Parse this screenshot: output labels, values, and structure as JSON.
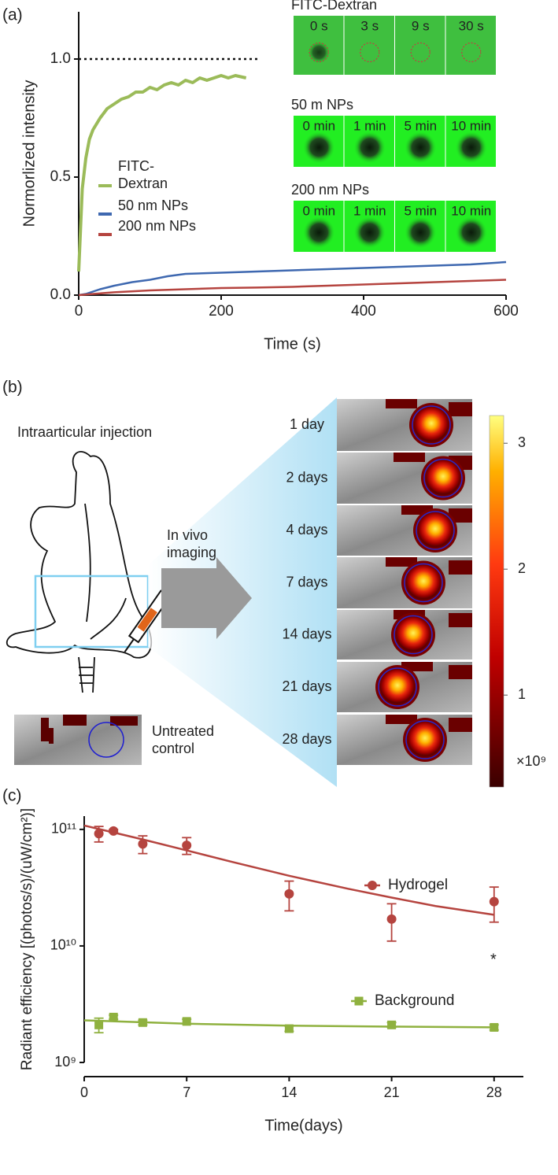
{
  "panel_labels": [
    "(a)",
    "(b)",
    "(c)"
  ],
  "chart_data": [
    {
      "type": "line",
      "xlabel": "Time (s)",
      "ylabel": "Normorlized intensity",
      "xlim": [
        0,
        600
      ],
      "xticks": [
        0,
        200,
        400,
        600
      ],
      "ylim": [
        0,
        1.2
      ],
      "yticks": [
        {
          "value": 0,
          "label": "0.0"
        },
        0.5,
        {
          "value": 1,
          "label": "1.0"
        }
      ],
      "reference_line": {
        "value": 1,
        "x": [
          0,
          255
        ]
      },
      "series": [
        {
          "name": "FITC-Dextran",
          "color": "#9bbb59",
          "x": [
            0,
            5,
            10,
            15,
            20,
            30,
            40,
            50,
            60,
            70,
            80,
            90,
            100,
            110,
            120,
            130,
            140,
            150,
            160,
            170,
            180,
            190,
            200,
            210,
            220,
            235
          ],
          "values": [
            0.1,
            0.45,
            0.58,
            0.66,
            0.7,
            0.75,
            0.79,
            0.81,
            0.83,
            0.84,
            0.86,
            0.86,
            0.88,
            0.87,
            0.89,
            0.9,
            0.89,
            0.91,
            0.9,
            0.92,
            0.91,
            0.92,
            0.93,
            0.92,
            0.93,
            0.92
          ]
        },
        {
          "name": "50 nm NPs",
          "color": "#3e68b0",
          "x": [
            0,
            10,
            20,
            30,
            50,
            75,
            100,
            125,
            150,
            200,
            250,
            300,
            350,
            400,
            450,
            500,
            550,
            600
          ],
          "values": [
            0,
            0.005,
            0.015,
            0.025,
            0.04,
            0.055,
            0.065,
            0.08,
            0.09,
            0.095,
            0.1,
            0.105,
            0.11,
            0.115,
            0.12,
            0.125,
            0.13,
            0.14
          ]
        },
        {
          "name": "200 nm NPs",
          "color": "#b5443f",
          "x": [
            0,
            20,
            50,
            100,
            150,
            200,
            250,
            300,
            350,
            400,
            450,
            500,
            550,
            600
          ],
          "values": [
            0,
            0.005,
            0.012,
            0.02,
            0.025,
            0.03,
            0.032,
            0.035,
            0.04,
            0.045,
            0.05,
            0.055,
            0.06,
            0.065
          ]
        }
      ]
    },
    {
      "type": "scatter",
      "log_y": true,
      "xlabel": "Time(days)",
      "ylabel": "Radiant efficiency [(photos/s)/(uW/cm²)]",
      "xlim": [
        0,
        30
      ],
      "xticks": [
        0,
        7,
        14,
        21,
        28
      ],
      "ylim": [
        1000000000.0,
        130000000000.0
      ],
      "yticks": [
        {
          "value": 1000000000.0,
          "label": "10⁹"
        },
        {
          "value": 10000000000.0,
          "label": "10¹⁰"
        },
        {
          "value": 100000000000.0,
          "label": "10¹¹"
        }
      ],
      "x": [
        1,
        2,
        4,
        7,
        14,
        21,
        28
      ],
      "annotation": "*",
      "series": [
        {
          "name": "Hydrogel",
          "color": "#b5443f",
          "marker": "circle",
          "values": [
            92000000000.0,
            97000000000.0,
            75000000000.0,
            73000000000.0,
            28000000000.0,
            17000000000.0,
            24000000000.0
          ],
          "errors": [
            14000000000.0,
            3000000000.0,
            13000000000.0,
            12000000000.0,
            8000000000.0,
            6000000000.0,
            8000000000.0
          ],
          "fit_x": [
            0,
            4,
            7,
            10,
            14,
            18,
            21,
            24,
            28
          ],
          "fit_values": [
            108000000000.0,
            82000000000.0,
            66000000000.0,
            53000000000.0,
            40000000000.0,
            31000000000.0,
            26000000000.0,
            22000000000.0,
            18500000000.0
          ]
        },
        {
          "name": "Background",
          "color": "#8fb13f",
          "marker": "square",
          "values": [
            2100000000.0,
            2450000000.0,
            2200000000.0,
            2250000000.0,
            1950000000.0,
            2100000000.0,
            2000000000.0
          ],
          "errors": [
            300000000.0,
            100000000.0,
            100000000.0,
            100000000.0,
            100000000.0,
            100000000.0,
            100000000.0
          ],
          "fit_x": [
            0,
            7,
            14,
            21,
            28
          ],
          "fit_values": [
            2300000000.0,
            2150000000.0,
            2070000000.0,
            2030000000.0,
            2000000000.0
          ]
        }
      ]
    }
  ],
  "insets_a": [
    {
      "title": "FITC-Dextran",
      "labels": [
        "0 s",
        "3 s",
        "9 s",
        "30 s"
      ]
    },
    {
      "title": "50 m NPs",
      "labels": [
        "0 min",
        "1 min",
        "5 min",
        "10 min"
      ]
    },
    {
      "title": "200 nm NPs",
      "labels": [
        "0 min",
        "1 min",
        "5 min",
        "10 min"
      ]
    }
  ],
  "panel_b": {
    "injection_label": "Intraarticular injection",
    "imaging_label": "In vivo imaging",
    "control_label": "Untreated control",
    "days": [
      "1 day",
      "2 days",
      "4 days",
      "7 days",
      "14 days",
      "21 days",
      "28 days"
    ],
    "colorbar": {
      "lim": [
        0.27,
        3.22
      ],
      "ticks": [
        1,
        2,
        3
      ],
      "unit_label": "×10⁹"
    }
  }
}
